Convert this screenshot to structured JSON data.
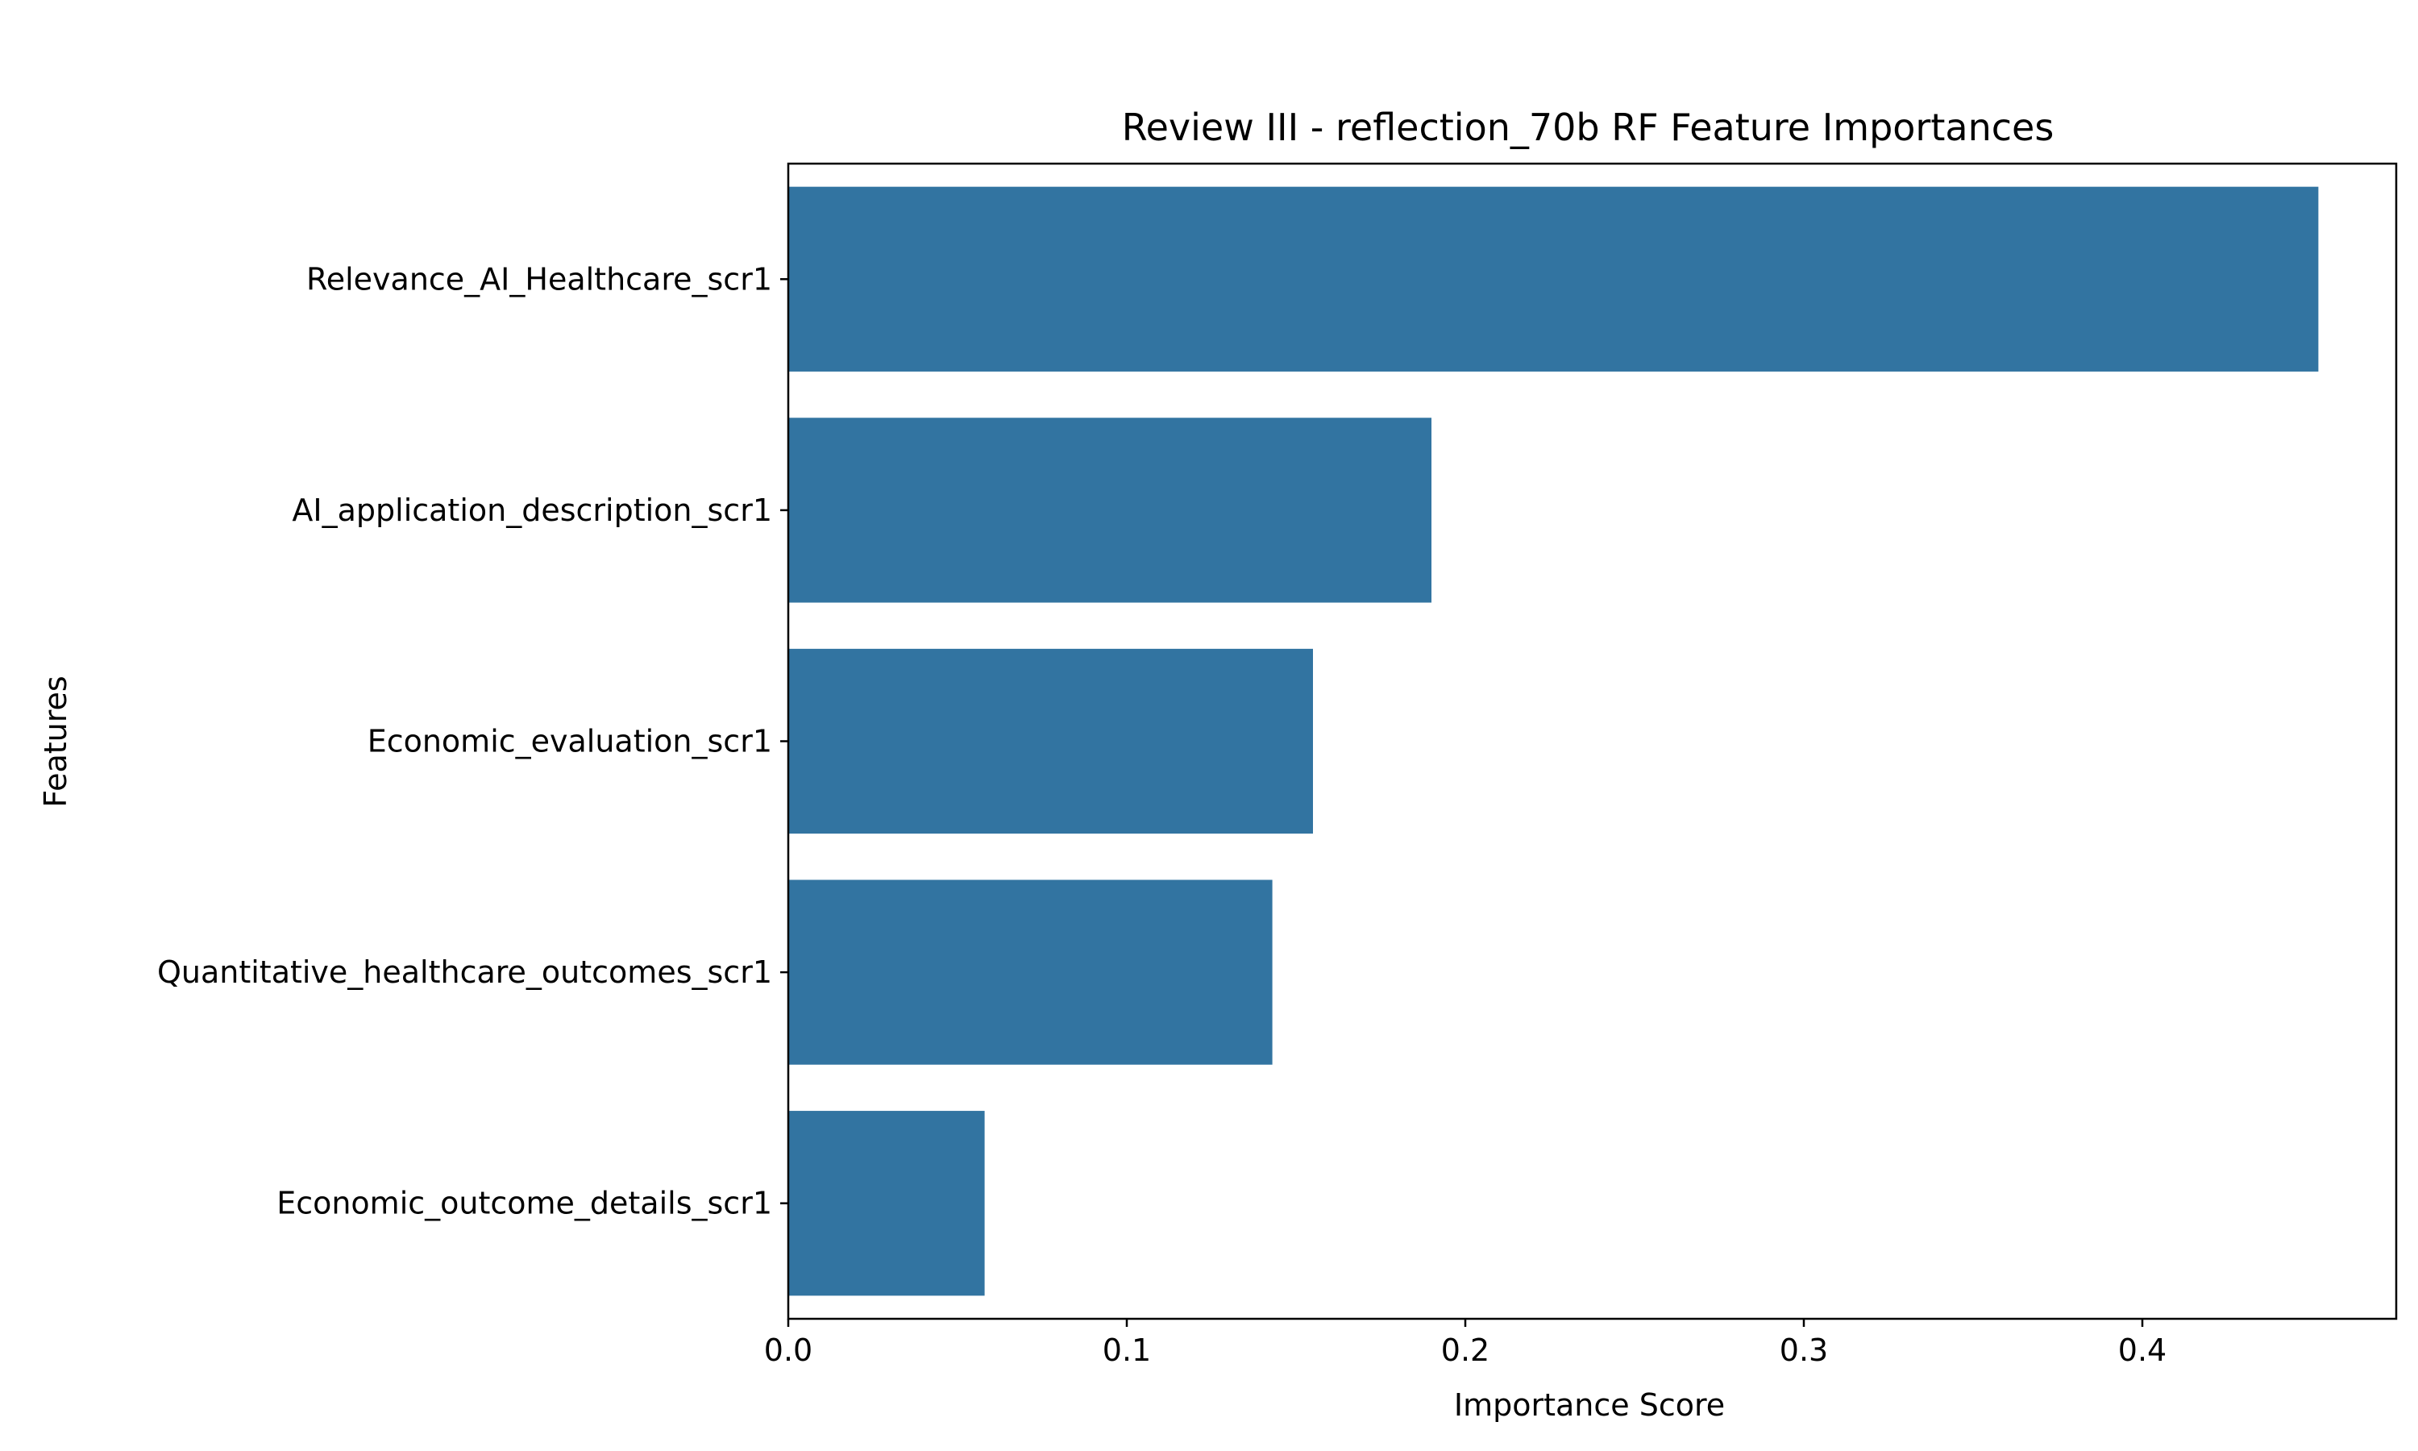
{
  "chart_data": {
    "type": "bar",
    "orientation": "horizontal",
    "title": "Review III - reflection_70b RF Feature Importances",
    "xlabel": "Importance Score",
    "ylabel": "Features",
    "categories": [
      "Relevance_AI_Healthcare_scr1",
      "AI_application_description_scr1",
      "Economic_evaluation_scr1",
      "Quantitative_healthcare_outcomes_scr1",
      "Economic_outcome_details_scr1"
    ],
    "values": [
      0.452,
      0.19,
      0.155,
      0.143,
      0.058
    ],
    "xlim": [
      0.0,
      0.475
    ],
    "xticks": [
      0.0,
      0.1,
      0.2,
      0.3,
      0.4
    ],
    "xtick_labels": [
      "0.0",
      "0.1",
      "0.2",
      "0.3",
      "0.4"
    ],
    "bar_color": "#3274a1",
    "grid": false,
    "legend": "none"
  }
}
